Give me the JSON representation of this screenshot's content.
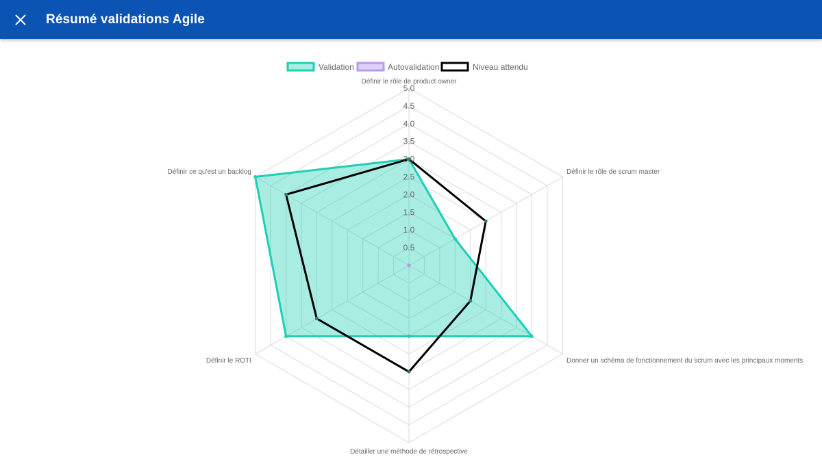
{
  "header": {
    "title": "Résumé validations Agile",
    "close_icon": "close-icon",
    "background": "#0b54b3"
  },
  "chart_data": {
    "type": "radar",
    "title": "",
    "categories": [
      "Définir le rôle de product owner",
      "Définir le rôle de scrum master",
      "Donner un schéma de fonctionnement du scrum avec les principaux moments",
      "Détailler une méthode de rétrospective",
      "Définir le ROTI",
      "Définir ce qu'est un backlog"
    ],
    "rlim": [
      0,
      5
    ],
    "ticks": [
      "0.5",
      "1.0",
      "1.5",
      "2.0",
      "2.5",
      "3.0",
      "3.5",
      "4.0",
      "4.5",
      "5.0"
    ],
    "grid": true,
    "legend_position": "top",
    "series": [
      {
        "name": "Validation",
        "values": [
          3,
          1.5,
          4,
          2,
          4,
          5
        ],
        "stroke": "#1dcfb4",
        "fill": "rgba(29,207,180,0.38)"
      },
      {
        "name": "Autovalidation",
        "values": [
          0,
          0,
          0,
          0,
          0,
          0
        ],
        "stroke": "#b89ae8",
        "fill": "rgba(184,154,232,0.45)"
      },
      {
        "name": "Niveau attendu",
        "values": [
          3,
          2.5,
          2,
          3,
          3,
          4
        ],
        "stroke": "#000000",
        "fill": "none"
      }
    ]
  }
}
